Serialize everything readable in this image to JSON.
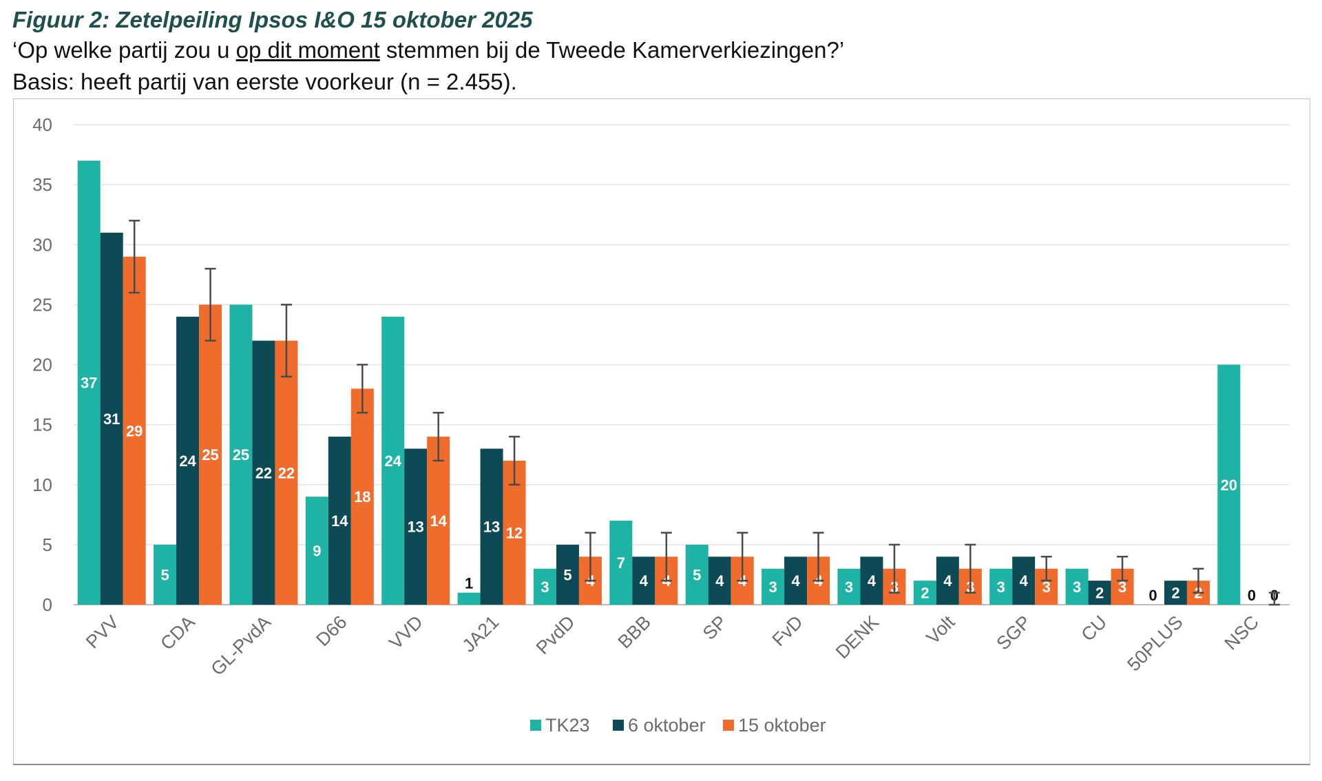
{
  "header": {
    "title": "Figuur 2: Zetelpeiling Ipsos I&O 15 oktober 2025",
    "question_pre": "‘Op welke partij zou u ",
    "question_underlined": "op dit moment",
    "question_post": " stemmen bij de Tweede Kamerverkiezingen?’",
    "basis": "Basis: heeft partij van eerste voorkeur (n = 2.455)."
  },
  "chart_data": {
    "type": "bar",
    "title": "",
    "xlabel": "",
    "ylabel": "",
    "ylim": [
      0,
      40
    ],
    "yticks": [
      0,
      5,
      10,
      15,
      20,
      25,
      30,
      35,
      40
    ],
    "grid": true,
    "legend_position": "bottom-center",
    "categories": [
      "PVV",
      "CDA",
      "GL-PvdA",
      "D66",
      "VVD",
      "JA21",
      "PvdD",
      "BBB",
      "SP",
      "FvD",
      "DENK",
      "Volt",
      "SGP",
      "CU",
      "50PLUS",
      "NSC"
    ],
    "series": [
      {
        "name": "TK23",
        "color": "#1fb3a6",
        "values": [
          37,
          5,
          25,
          9,
          24,
          1,
          3,
          7,
          5,
          3,
          3,
          2,
          3,
          3,
          0,
          20
        ]
      },
      {
        "name": "6 oktober",
        "color": "#0d4a55",
        "values": [
          31,
          24,
          22,
          14,
          13,
          13,
          5,
          4,
          4,
          4,
          4,
          4,
          4,
          2,
          2,
          0
        ]
      },
      {
        "name": "15 oktober",
        "color": "#ef6c2d",
        "values": [
          29,
          25,
          22,
          18,
          14,
          12,
          4,
          4,
          4,
          4,
          3,
          3,
          3,
          3,
          2,
          0
        ],
        "error_bars": [
          [
            26,
            32
          ],
          [
            22,
            28
          ],
          [
            19,
            25
          ],
          [
            16,
            20
          ],
          [
            12,
            16
          ],
          [
            10,
            14
          ],
          [
            2,
            6
          ],
          [
            2,
            6
          ],
          [
            2,
            6
          ],
          [
            2,
            6
          ],
          [
            1,
            5
          ],
          [
            1,
            5
          ],
          [
            2,
            4
          ],
          [
            2,
            4
          ],
          [
            1,
            3
          ],
          [
            0,
            1
          ]
        ]
      }
    ]
  }
}
